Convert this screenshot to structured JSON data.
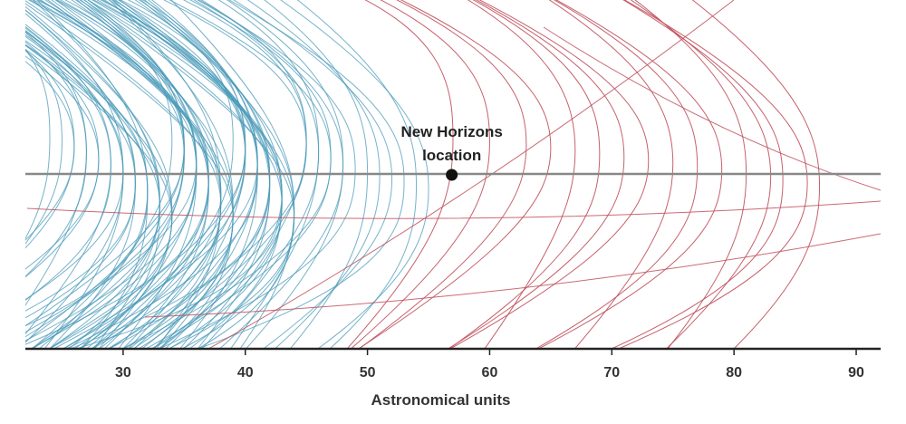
{
  "chart_data": {
    "type": "line",
    "title": "",
    "xlabel": "Astronomical units",
    "ylabel": "",
    "xlim": [
      22,
      92
    ],
    "xticks": [
      30,
      40,
      50,
      60,
      70,
      80,
      90
    ],
    "xtick_labels": [
      "30",
      "40",
      "50",
      "60",
      "70",
      "80",
      "90"
    ],
    "grid": false,
    "series": [
      {
        "color": "#4a9ab8",
        "note_style": "blue orbital arcs",
        "perihelion_au": [
          24,
          25,
          26,
          26,
          27,
          27,
          28,
          28,
          29,
          29,
          30,
          30,
          30,
          31,
          31,
          31,
          32,
          32,
          32,
          33,
          33,
          33,
          33,
          34,
          34,
          34,
          34,
          35,
          35,
          35,
          35,
          35,
          36,
          36,
          36,
          36,
          36,
          37,
          37,
          37,
          37,
          37,
          38,
          38,
          38,
          38,
          38,
          39,
          39,
          39,
          39,
          39,
          40,
          40,
          40,
          40,
          40,
          41,
          41,
          41,
          41,
          41,
          42,
          42,
          42,
          42,
          42,
          43,
          43,
          43,
          43,
          43,
          44,
          44,
          44,
          44,
          45,
          45,
          45,
          46,
          46,
          47,
          47,
          48,
          48,
          49,
          50,
          51,
          52,
          53,
          54,
          55
        ]
      },
      {
        "color": "#c0505c",
        "note_style": "red orbital arcs",
        "perihelion_au": [
          57,
          60,
          63,
          65,
          67,
          69,
          71,
          73,
          75,
          77,
          79,
          81,
          83,
          84,
          86,
          87
        ]
      }
    ],
    "reference_line": {
      "color": "#888888"
    },
    "annotation": {
      "text_line1": "New Horizons",
      "text_line2": "location",
      "x": 56.9
    }
  }
}
